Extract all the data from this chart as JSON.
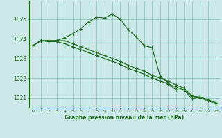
{
  "title": "Graphe pression niveau de la mer (hPa)",
  "background_color": "#cce8e8",
  "grid_color": "#88ccbb",
  "line_color": "#1a6b1a",
  "xlim": [
    -0.5,
    23.5
  ],
  "ylim": [
    1020.5,
    1025.9
  ],
  "yticks": [
    1021,
    1022,
    1023,
    1024,
    1025
  ],
  "xtick_labels": [
    "0",
    "1",
    "2",
    "3",
    "4",
    "5",
    "6",
    "7",
    "8",
    "9",
    "10",
    "11",
    "12",
    "13",
    "14",
    "15",
    "16",
    "17",
    "18",
    "19",
    "20",
    "21",
    "22",
    "23"
  ],
  "series": [
    [
      1023.65,
      1023.9,
      1023.9,
      1023.9,
      1024.05,
      1024.25,
      1024.5,
      1024.85,
      1025.1,
      1025.05,
      1025.25,
      1025.0,
      1024.45,
      1024.1,
      1023.65,
      1023.55,
      1022.1,
      1021.75,
      1021.4,
      1021.4,
      1020.95,
      1021.05,
      1020.9,
      1020.75
    ],
    [
      1023.65,
      1023.9,
      1023.9,
      1023.9,
      1023.9,
      1023.75,
      1023.6,
      1023.45,
      1023.3,
      1023.15,
      1023.0,
      1022.85,
      1022.65,
      1022.5,
      1022.35,
      1022.15,
      1022.0,
      1021.85,
      1021.65,
      1021.5,
      1021.1,
      1021.05,
      1020.9,
      1020.75
    ],
    [
      1023.65,
      1023.9,
      1023.85,
      1023.85,
      1023.75,
      1023.6,
      1023.45,
      1023.3,
      1023.15,
      1023.0,
      1022.85,
      1022.7,
      1022.5,
      1022.35,
      1022.2,
      1022.0,
      1021.85,
      1021.7,
      1021.55,
      1021.4,
      1021.05,
      1021.0,
      1020.85,
      1020.7
    ]
  ]
}
